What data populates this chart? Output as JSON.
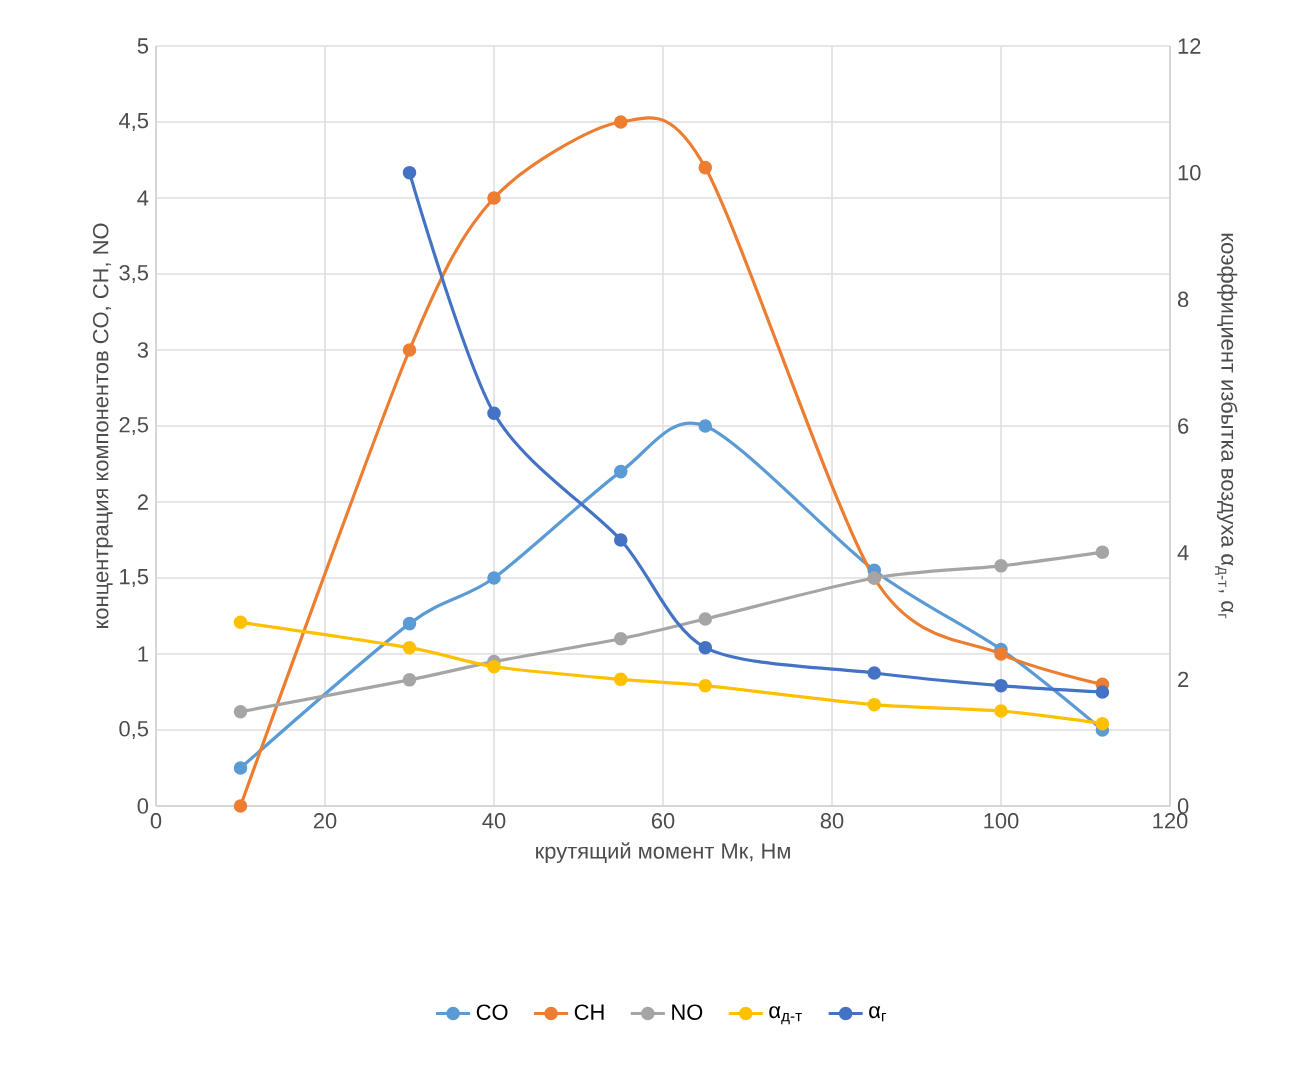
{
  "chart_data": {
    "type": "line",
    "xlabel": "крутящий момент Мк, Нм",
    "ylabel": "концентрация компонентов CO, CH, NO",
    "y2label": "коэффициент избытка воздуха α$_{д-т}$, α$_{г}$",
    "x": [
      10,
      30,
      40,
      55,
      65,
      85,
      100,
      112
    ],
    "xlim": [
      0,
      120
    ],
    "xticks": [
      0,
      20,
      40,
      60,
      80,
      100,
      120
    ],
    "ylim": [
      0,
      5
    ],
    "yticks": [
      0,
      {
        "value": 0.5,
        "label": "0,5"
      },
      1,
      {
        "value": 1.5,
        "label": "1,5"
      },
      2,
      {
        "value": 2.5,
        "label": "2,5"
      },
      3,
      {
        "value": 3.5,
        "label": "3,5"
      },
      4,
      {
        "value": 4.5,
        "label": "4,5"
      },
      5
    ],
    "y2lim": [
      0,
      12
    ],
    "y2ticks": [
      0,
      2,
      4,
      6,
      8,
      10,
      12
    ],
    "grid": true,
    "legend": "bottom",
    "marker": "circle",
    "line_style": "solid",
    "series": [
      {
        "name": "CO",
        "color": "#5b9bd5",
        "values": [
          0.25,
          1.2,
          1.5,
          2.2,
          2.5,
          1.55,
          1.03,
          0.5
        ]
      },
      {
        "name": "CH",
        "color": "#ed7d31",
        "values": [
          0,
          3,
          4,
          4.5,
          4.2,
          1.5,
          1.0,
          0.8
        ]
      },
      {
        "name": "NO",
        "color": "#a5a5a5",
        "values": [
          0.62,
          0.83,
          0.95,
          1.1,
          1.23,
          1.5,
          1.58,
          1.67
        ]
      },
      {
        "name": "α$_{д-т}$",
        "color": "#ffc000",
        "axis": "y2",
        "values": [
          2.9,
          2.5,
          2.2,
          2.0,
          1.9,
          1.6,
          1.5,
          1.3
        ]
      },
      {
        "name": "α$_{г}$",
        "color": "#4472c4",
        "axis": "y2",
        "values": [
          null,
          10.0,
          6.2,
          4.2,
          2.5,
          2.1,
          1.9,
          1.8
        ]
      }
    ]
  }
}
